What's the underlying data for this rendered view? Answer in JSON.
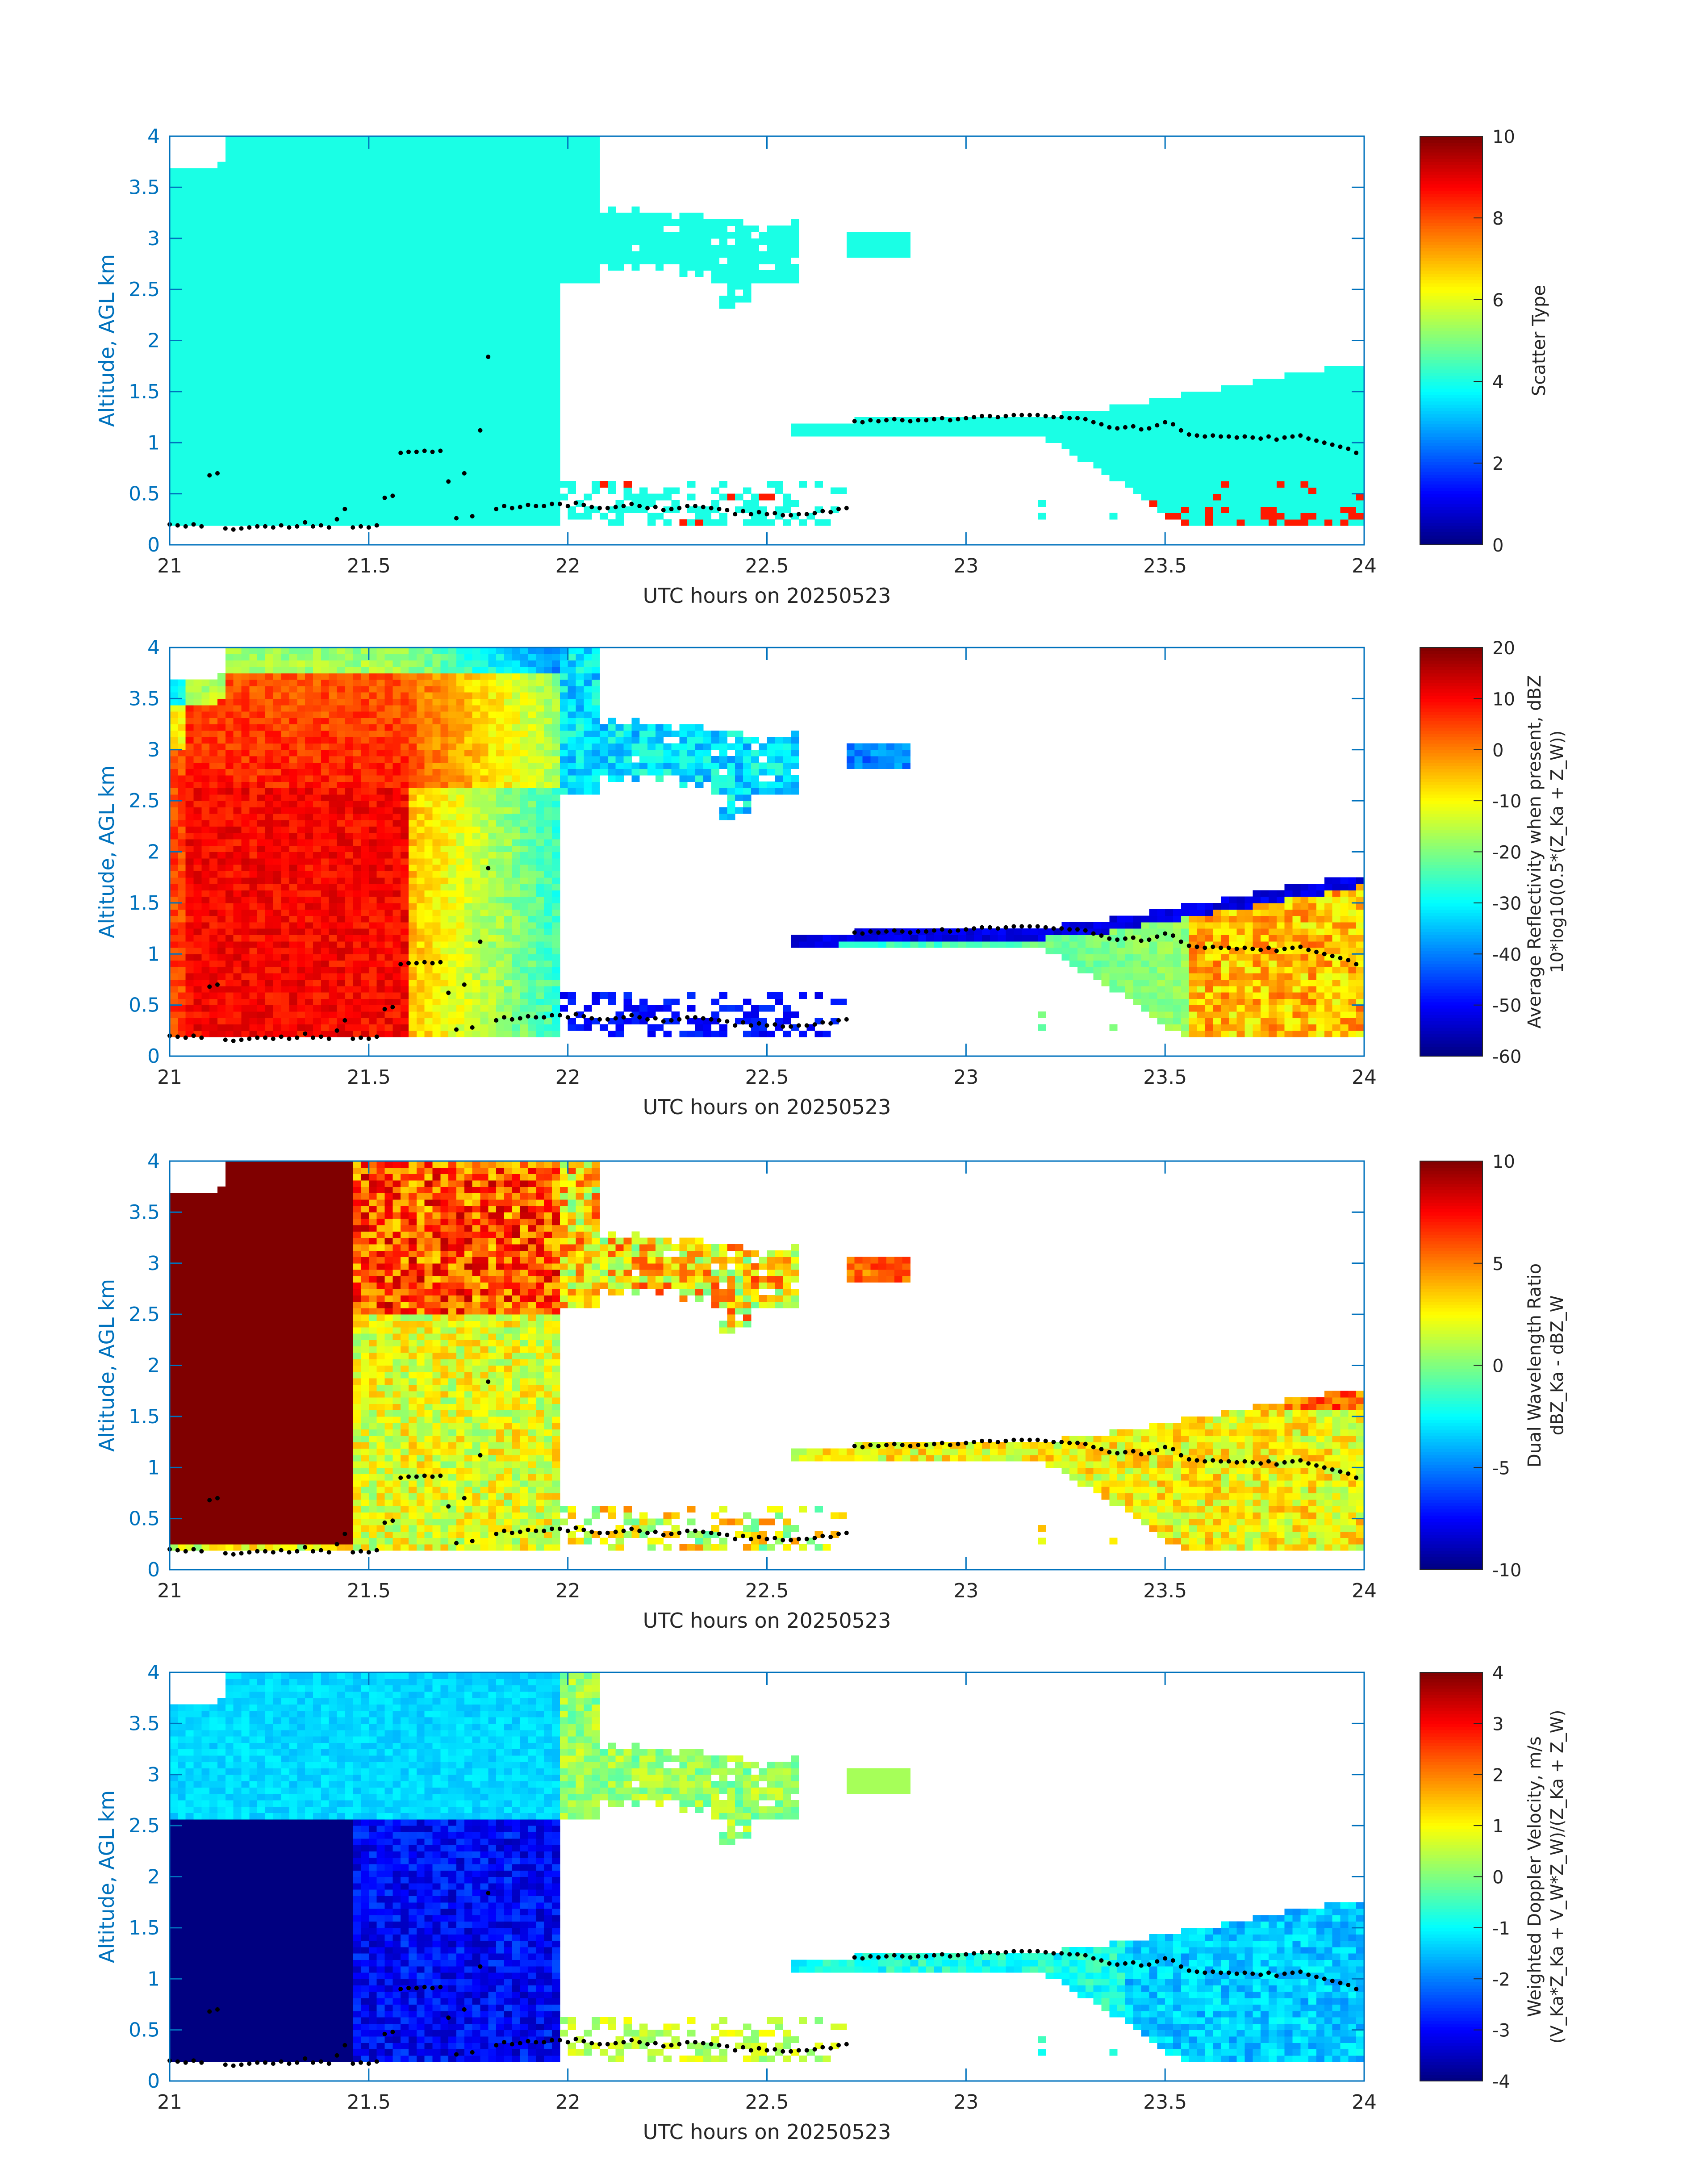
{
  "figure": {
    "background": "#ffffff",
    "axis_color": "#0072bd",
    "text_color": "#262626"
  },
  "chart_data": [
    {
      "type": "heatmap",
      "xlabel": "UTC hours on 20250523",
      "ylabel": "Altitude, AGL km",
      "xlim": [
        21,
        24
      ],
      "ylim": [
        0,
        4
      ],
      "x_ticks": [
        "21",
        "21.5",
        "22",
        "22.5",
        "23",
        "23.5",
        "24"
      ],
      "y_ticks": [
        "0",
        "0.5",
        "1",
        "1.5",
        "2",
        "2.5",
        "3",
        "3.5",
        "4"
      ],
      "colorbar": {
        "label": "Scatter Type",
        "label2": "",
        "range": [
          0,
          10
        ],
        "ticks": [
          "0",
          "2",
          "4",
          "6",
          "8",
          "10"
        ]
      },
      "colormap": "jet",
      "field": "scatter_type"
    },
    {
      "type": "heatmap",
      "xlabel": "UTC hours on 20250523",
      "ylabel": "Altitude, AGL km",
      "xlim": [
        21,
        24
      ],
      "ylim": [
        0,
        4
      ],
      "x_ticks": [
        "21",
        "21.5",
        "22",
        "22.5",
        "23",
        "23.5",
        "24"
      ],
      "y_ticks": [
        "0",
        "0.5",
        "1",
        "1.5",
        "2",
        "2.5",
        "3",
        "3.5",
        "4"
      ],
      "colorbar": {
        "label": "Average Reflectivity when present, dBZ",
        "label2": "10*log10(0.5*(Z_Ka + Z_W))",
        "range": [
          -60,
          20
        ],
        "ticks": [
          "-60",
          "-50",
          "-40",
          "-30",
          "-20",
          "-10",
          "0",
          "10",
          "20"
        ]
      },
      "colormap": "jet",
      "field": "reflectivity"
    },
    {
      "type": "heatmap",
      "xlabel": "UTC hours on 20250523",
      "ylabel": "Altitude, AGL km",
      "xlim": [
        21,
        24
      ],
      "ylim": [
        0,
        4
      ],
      "x_ticks": [
        "21",
        "21.5",
        "22",
        "22.5",
        "23",
        "23.5",
        "24"
      ],
      "y_ticks": [
        "0",
        "0.5",
        "1",
        "1.5",
        "2",
        "2.5",
        "3",
        "3.5",
        "4"
      ],
      "colorbar": {
        "label": "Dual Wavelength Ratio",
        "label2": "dBZ_Ka - dBZ_W",
        "range": [
          -10,
          10
        ],
        "ticks": [
          "-10",
          "-5",
          "0",
          "5",
          "10"
        ]
      },
      "colormap": "jet",
      "field": "dwr"
    },
    {
      "type": "heatmap",
      "xlabel": "UTC hours on 20250523",
      "ylabel": "Altitude, AGL km",
      "xlim": [
        21,
        24
      ],
      "ylim": [
        0,
        4
      ],
      "x_ticks": [
        "21",
        "21.5",
        "22",
        "22.5",
        "23",
        "23.5",
        "24"
      ],
      "y_ticks": [
        "0",
        "0.5",
        "1",
        "1.5",
        "2",
        "2.5",
        "3",
        "3.5",
        "4"
      ],
      "colorbar": {
        "label": "Weighted Doppler Velocity, m/s",
        "label2": "(V_Ka*Z_Ka + V_W*Z_W)/(Z_Ka + Z_W)",
        "range": [
          -4,
          4
        ],
        "ticks": [
          "-4",
          "-3",
          "-2",
          "-1",
          "0",
          "1",
          "2",
          "3",
          "4"
        ]
      },
      "colormap": "jet",
      "field": "velocity"
    }
  ],
  "cloud_base_points": {
    "color": "#000000",
    "x": [
      21.0,
      21.02,
      21.04,
      21.06,
      21.08,
      21.1,
      21.12,
      21.14,
      21.16,
      21.18,
      21.2,
      21.22,
      21.24,
      21.26,
      21.28,
      21.3,
      21.32,
      21.34,
      21.36,
      21.38,
      21.4,
      21.42,
      21.44,
      21.46,
      21.48,
      21.5,
      21.52,
      21.54,
      21.56,
      21.58,
      21.6,
      21.62,
      21.64,
      21.66,
      21.68,
      21.7,
      21.72,
      21.74,
      21.76,
      21.78,
      21.8,
      21.82,
      21.84,
      21.86,
      21.88,
      21.9,
      21.92,
      21.94,
      21.96,
      21.98,
      22.0,
      22.02,
      22.04,
      22.06,
      22.08,
      22.1,
      22.12,
      22.14,
      22.16,
      22.18,
      22.2,
      22.22,
      22.24,
      22.26,
      22.28,
      22.3,
      22.32,
      22.34,
      22.36,
      22.38,
      22.4,
      22.42,
      22.44,
      22.46,
      22.48,
      22.5,
      22.52,
      22.54,
      22.56,
      22.58,
      22.6,
      22.62,
      22.64,
      22.66,
      22.68,
      22.7,
      22.72,
      22.74,
      22.76,
      22.78,
      22.8,
      22.82,
      22.84,
      22.86,
      22.88,
      22.9,
      22.92,
      22.94,
      22.96,
      22.98,
      23.0,
      23.02,
      23.04,
      23.06,
      23.08,
      23.1,
      23.12,
      23.14,
      23.16,
      23.18,
      23.2,
      23.22,
      23.24,
      23.26,
      23.28,
      23.3,
      23.32,
      23.34,
      23.36,
      23.38,
      23.4,
      23.42,
      23.44,
      23.46,
      23.48,
      23.5,
      23.52,
      23.54,
      23.56,
      23.58,
      23.6,
      23.62,
      23.64,
      23.66,
      23.68,
      23.7,
      23.72,
      23.74,
      23.76,
      23.78,
      23.8,
      23.82,
      23.84,
      23.86,
      23.88,
      23.9,
      23.92,
      23.94,
      23.96,
      23.98
    ],
    "y": [
      0.2,
      0.19,
      0.18,
      0.2,
      0.18,
      0.68,
      0.7,
      0.16,
      0.15,
      0.16,
      0.17,
      0.18,
      0.18,
      0.17,
      0.19,
      0.17,
      0.18,
      0.22,
      0.18,
      0.19,
      0.17,
      0.25,
      0.35,
      0.17,
      0.18,
      0.17,
      0.19,
      0.46,
      0.48,
      0.9,
      0.91,
      0.91,
      0.92,
      0.91,
      0.92,
      0.62,
      0.26,
      0.7,
      0.28,
      1.12,
      1.84,
      0.35,
      0.38,
      0.36,
      0.37,
      0.39,
      0.38,
      0.38,
      0.4,
      0.4,
      0.38,
      0.41,
      0.39,
      0.37,
      0.36,
      0.36,
      0.37,
      0.38,
      0.4,
      0.38,
      0.36,
      0.37,
      0.34,
      0.35,
      0.36,
      0.38,
      0.38,
      0.37,
      0.36,
      0.35,
      0.34,
      0.3,
      0.33,
      0.3,
      0.32,
      0.3,
      0.31,
      0.29,
      0.29,
      0.3,
      0.3,
      0.31,
      0.33,
      0.32,
      0.35,
      0.36,
      1.21,
      1.2,
      1.22,
      1.21,
      1.22,
      1.23,
      1.22,
      1.21,
      1.22,
      1.22,
      1.23,
      1.24,
      1.22,
      1.23,
      1.24,
      1.25,
      1.26,
      1.26,
      1.25,
      1.26,
      1.27,
      1.27,
      1.27,
      1.27,
      1.26,
      1.25,
      1.25,
      1.24,
      1.24,
      1.23,
      1.2,
      1.18,
      1.15,
      1.14,
      1.15,
      1.16,
      1.13,
      1.14,
      1.17,
      1.2,
      1.18,
      1.12,
      1.08,
      1.07,
      1.06,
      1.07,
      1.06,
      1.06,
      1.05,
      1.06,
      1.05,
      1.04,
      1.06,
      1.03,
      1.05,
      1.06,
      1.07,
      1.04,
      1.02,
      1.0,
      0.98,
      0.96,
      0.94,
      0.9
    ]
  }
}
